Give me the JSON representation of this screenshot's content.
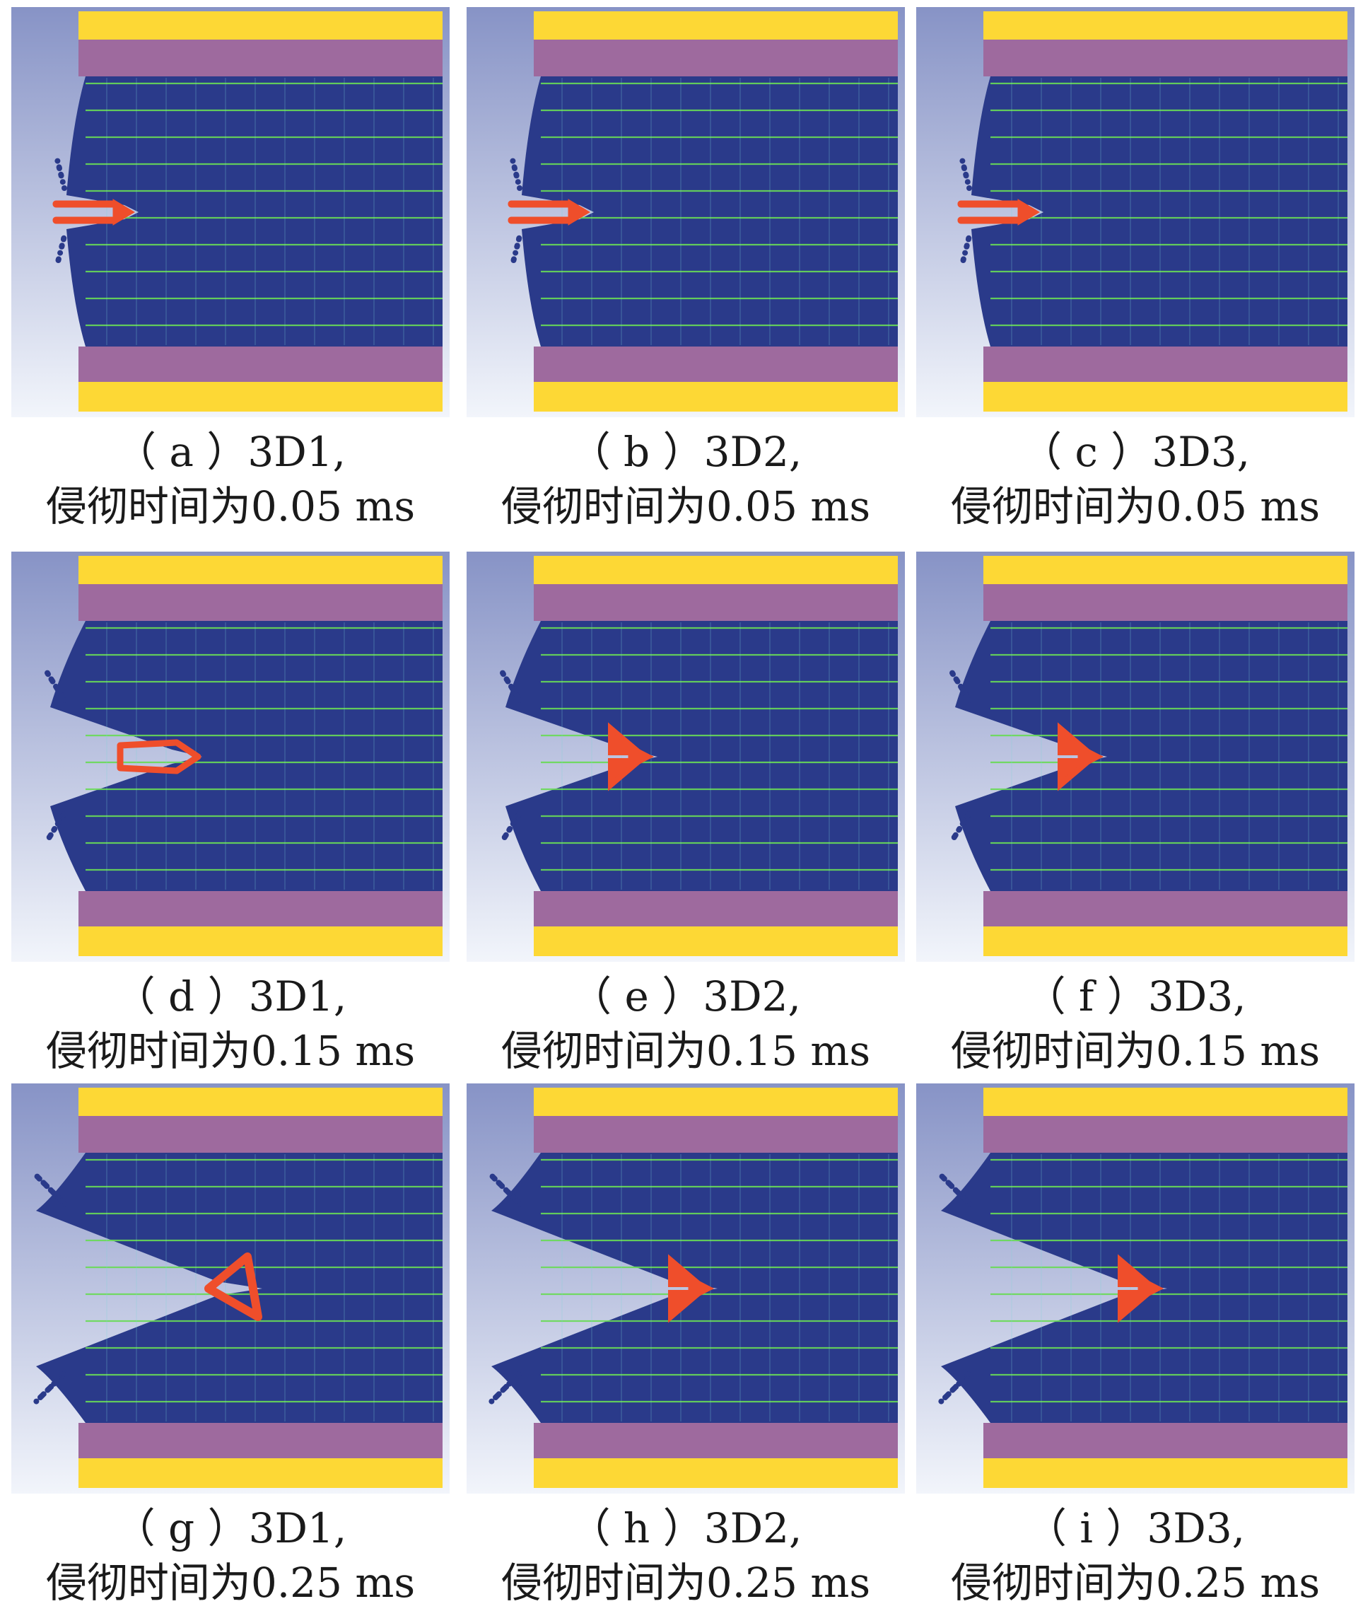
{
  "figure": {
    "colors": {
      "background": "#f2f5fb",
      "gradient_top": "#8793c6",
      "gap_light": "#e9edf7",
      "yellow_plate": "#fdd835",
      "purple_layer": "#9e6a9e",
      "composite_blue": "#2a3a8a",
      "fiber_green": "#69db56",
      "crack_cyan": "#7fd6d8",
      "projectile_red": "#ef4e2b"
    },
    "panels": [
      {
        "id": "a",
        "label": "（ a ）3D1,",
        "time": "侵彻时间为0.05 ms",
        "stage": 0,
        "shape": "rod",
        "damage": 0.2
      },
      {
        "id": "b",
        "label": "（ b ）3D2,",
        "time": "侵彻时间为0.05 ms",
        "stage": 0,
        "shape": "rod",
        "damage": 0.2
      },
      {
        "id": "c",
        "label": "（ c ）3D3,",
        "time": "侵彻时间为0.05 ms",
        "stage": 0,
        "shape": "rod",
        "damage": 0.2
      },
      {
        "id": "d",
        "label": "（ d ）3D1,",
        "time": "侵彻时间为0.15 ms",
        "stage": 1,
        "shape": "loop",
        "damage": 0.5
      },
      {
        "id": "e",
        "label": "（ e ）3D2,",
        "time": "侵彻时间为0.15 ms",
        "stage": 1,
        "shape": "arrow",
        "damage": 0.5
      },
      {
        "id": "f",
        "label": "（ f ）3D3,",
        "time": "侵彻时间为0.15 ms",
        "stage": 1,
        "shape": "arrow",
        "damage": 0.5
      },
      {
        "id": "g",
        "label": "（ g ）3D1,",
        "time": "侵彻时间为0.25 ms",
        "stage": 2,
        "shape": "triangle",
        "damage": 0.8
      },
      {
        "id": "h",
        "label": "（ h ）3D2,",
        "time": "侵彻时间为0.25 ms",
        "stage": 2,
        "shape": "arrow",
        "damage": 0.8
      },
      {
        "id": "i",
        "label": "（ i ）3D3,",
        "time": "侵彻时间为0.25 ms",
        "stage": 2,
        "shape": "arrow",
        "damage": 0.8
      }
    ]
  }
}
